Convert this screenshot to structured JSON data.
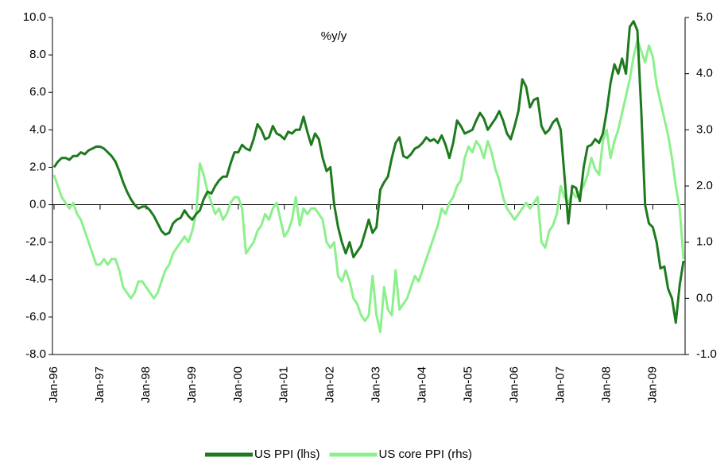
{
  "chart_data": {
    "type": "line",
    "title": "%y/y",
    "categories": [
      "Jan-96",
      null,
      null,
      null,
      null,
      null,
      null,
      null,
      null,
      null,
      null,
      null,
      "Jan-97",
      null,
      null,
      null,
      null,
      null,
      null,
      null,
      null,
      null,
      null,
      null,
      "Jan-98",
      null,
      null,
      null,
      null,
      null,
      null,
      null,
      null,
      null,
      null,
      null,
      "Jan-99",
      null,
      null,
      null,
      null,
      null,
      null,
      null,
      null,
      null,
      null,
      null,
      "Jan-00",
      null,
      null,
      null,
      null,
      null,
      null,
      null,
      null,
      null,
      null,
      null,
      "Jan-01",
      null,
      null,
      null,
      null,
      null,
      null,
      null,
      null,
      null,
      null,
      null,
      "Jan-02",
      null,
      null,
      null,
      null,
      null,
      null,
      null,
      null,
      null,
      null,
      null,
      "Jan-03",
      null,
      null,
      null,
      null,
      null,
      null,
      null,
      null,
      null,
      null,
      null,
      "Jan-04",
      null,
      null,
      null,
      null,
      null,
      null,
      null,
      null,
      null,
      null,
      null,
      "Jan-05",
      null,
      null,
      null,
      null,
      null,
      null,
      null,
      null,
      null,
      null,
      null,
      "Jan-06",
      null,
      null,
      null,
      null,
      null,
      null,
      null,
      null,
      null,
      null,
      null,
      "Jan-07",
      null,
      null,
      null,
      null,
      null,
      null,
      null,
      null,
      null,
      null,
      null,
      "Jan-08",
      null,
      null,
      null,
      null,
      null,
      null,
      null,
      null,
      null,
      null,
      null,
      "Jan-09",
      null,
      null,
      null,
      null,
      null,
      null,
      null,
      null
    ],
    "series": [
      {
        "name": "US PPI (lhs)",
        "color": "#1e7a1e",
        "axis": "y",
        "values": [
          2.0,
          2.3,
          2.5,
          2.5,
          2.4,
          2.6,
          2.6,
          2.8,
          2.7,
          2.9,
          3.0,
          3.1,
          3.1,
          3.0,
          2.8,
          2.6,
          2.3,
          1.8,
          1.2,
          0.7,
          0.3,
          0.0,
          -0.2,
          -0.1,
          -0.1,
          -0.3,
          -0.6,
          -1.0,
          -1.4,
          -1.6,
          -1.5,
          -1.0,
          -0.8,
          -0.7,
          -0.3,
          -0.6,
          -0.8,
          -0.5,
          -0.3,
          0.3,
          0.7,
          0.6,
          1.0,
          1.3,
          1.5,
          1.5,
          2.2,
          2.8,
          2.8,
          3.2,
          3.0,
          2.9,
          3.5,
          4.3,
          4.0,
          3.5,
          3.6,
          4.2,
          3.8,
          3.7,
          3.5,
          3.9,
          3.8,
          4.0,
          4.0,
          4.7,
          3.9,
          3.2,
          3.8,
          3.5,
          2.5,
          1.8,
          2.0,
          0.0,
          -1.2,
          -2.0,
          -2.6,
          -2.0,
          -2.8,
          -2.5,
          -2.2,
          -1.5,
          -0.8,
          -1.5,
          -1.2,
          0.8,
          1.2,
          1.5,
          2.5,
          3.3,
          3.6,
          2.6,
          2.5,
          2.7,
          3.0,
          3.1,
          3.3,
          3.6,
          3.4,
          3.5,
          3.3,
          3.7,
          3.2,
          2.5,
          3.3,
          4.5,
          4.2,
          3.8,
          3.9,
          4.0,
          4.5,
          4.9,
          4.6,
          4.0,
          4.3,
          4.6,
          5.0,
          4.5,
          3.8,
          3.5,
          4.2,
          5.0,
          6.7,
          6.3,
          5.2,
          5.6,
          5.7,
          4.2,
          3.8,
          4.0,
          4.4,
          4.6,
          4.0,
          1.5,
          -1.0,
          1.0,
          0.9,
          0.2,
          2.0,
          3.1,
          3.2,
          3.5,
          3.3,
          3.8,
          5.0,
          6.5,
          7.5,
          7.0,
          7.8,
          7.0,
          9.5,
          9.8,
          9.3,
          5.0,
          0.0,
          -1.0,
          -1.2,
          -2.0,
          -3.4,
          -3.3,
          -4.5,
          -5.0,
          -6.3,
          -4.3,
          -3.0
        ]
      },
      {
        "name": "US core PPI (rhs)",
        "color": "#8cf08c",
        "axis": "y2",
        "values": [
          2.2,
          2.0,
          1.8,
          1.7,
          1.6,
          1.7,
          1.5,
          1.4,
          1.2,
          1.0,
          0.8,
          0.6,
          0.6,
          0.7,
          0.6,
          0.7,
          0.7,
          0.5,
          0.2,
          0.1,
          0.0,
          0.1,
          0.3,
          0.3,
          0.2,
          0.1,
          0.0,
          0.1,
          0.3,
          0.5,
          0.6,
          0.8,
          0.9,
          1.0,
          1.1,
          1.0,
          1.2,
          1.5,
          2.4,
          2.2,
          1.9,
          1.7,
          1.5,
          1.6,
          1.4,
          1.5,
          1.7,
          1.8,
          1.8,
          1.6,
          0.8,
          0.9,
          1.0,
          1.2,
          1.3,
          1.5,
          1.4,
          1.6,
          1.7,
          1.4,
          1.1,
          1.2,
          1.4,
          1.8,
          1.3,
          1.6,
          1.5,
          1.6,
          1.6,
          1.5,
          1.4,
          1.0,
          0.9,
          1.0,
          0.4,
          0.3,
          0.5,
          0.3,
          0.0,
          -0.1,
          -0.3,
          -0.4,
          -0.3,
          0.4,
          -0.3,
          -0.6,
          0.2,
          -0.2,
          -0.3,
          0.5,
          -0.2,
          -0.1,
          0.0,
          0.2,
          0.4,
          0.3,
          0.5,
          0.7,
          0.9,
          1.1,
          1.3,
          1.6,
          1.5,
          1.7,
          1.8,
          2.0,
          2.1,
          2.5,
          2.7,
          2.6,
          2.8,
          2.7,
          2.5,
          2.8,
          2.6,
          2.3,
          2.1,
          1.8,
          1.6,
          1.5,
          1.4,
          1.5,
          1.6,
          1.7,
          1.6,
          1.7,
          1.8,
          1.0,
          0.9,
          1.2,
          1.3,
          1.5,
          2.0,
          1.8,
          1.7,
          1.9,
          1.8,
          1.9,
          2.0,
          2.2,
          2.5,
          2.3,
          2.2,
          2.8,
          3.0,
          2.5,
          2.8,
          3.0,
          3.3,
          3.6,
          3.9,
          4.3,
          4.6,
          4.4,
          4.2,
          4.5,
          4.3,
          3.8,
          3.5,
          3.2,
          2.9,
          2.5,
          2.0,
          1.6,
          0.7
        ]
      }
    ],
    "ylim": [
      -8,
      10
    ],
    "yticks": [
      {
        "value": -8,
        "label": "-8.0"
      },
      {
        "value": -6,
        "label": "-6.0"
      },
      {
        "value": -4,
        "label": "-4.0"
      },
      {
        "value": -2,
        "label": "-2.0"
      },
      {
        "value": 0,
        "label": "0.0"
      },
      {
        "value": 2,
        "label": "2.0"
      },
      {
        "value": 4,
        "label": "4.0"
      },
      {
        "value": 6,
        "label": "6.0"
      },
      {
        "value": 8,
        "label": "8.0"
      },
      {
        "value": 10,
        "label": "10.0"
      }
    ],
    "y2lim": [
      -1,
      5
    ],
    "y2ticks": [
      {
        "value": -1,
        "label": "-1.0"
      },
      {
        "value": 0,
        "label": "0.0"
      },
      {
        "value": 1,
        "label": "1.0"
      },
      {
        "value": 2,
        "label": "2.0"
      },
      {
        "value": 3,
        "label": "3.0"
      },
      {
        "value": 4,
        "label": "4.0"
      },
      {
        "value": 5,
        "label": "5.0"
      }
    ],
    "legend": "bottom"
  }
}
